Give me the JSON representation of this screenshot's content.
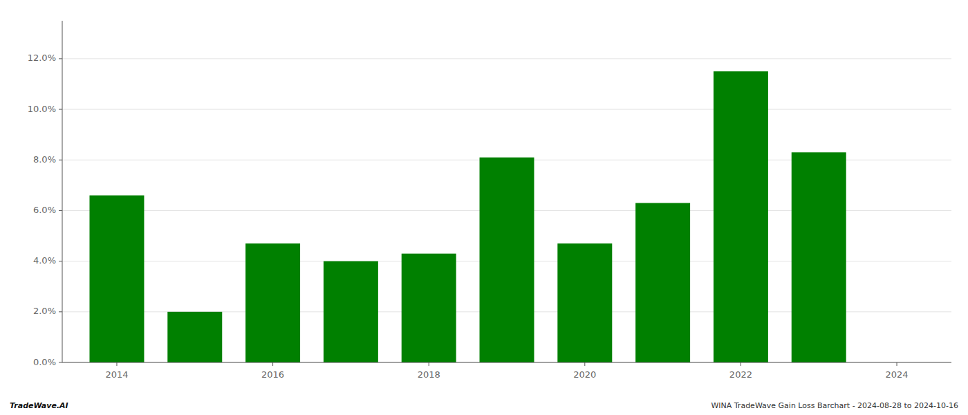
{
  "chart_data": {
    "type": "bar",
    "x": [
      2014,
      2015,
      2016,
      2017,
      2018,
      2019,
      2020,
      2021,
      2022,
      2023
    ],
    "values": [
      0.066,
      0.02,
      0.047,
      0.04,
      0.043,
      0.081,
      0.047,
      0.063,
      0.115,
      0.083
    ],
    "color": "#008000",
    "xlim": [
      2013.3,
      2024.7
    ],
    "xticks": [
      2014,
      2016,
      2018,
      2020,
      2022,
      2024
    ],
    "ylim": [
      0,
      0.135
    ],
    "yticks": [
      {
        "value": 0.0,
        "label": "0.0%"
      },
      {
        "value": 0.02,
        "label": "2.0%"
      },
      {
        "value": 0.04,
        "label": "4.0%"
      },
      {
        "value": 0.06,
        "label": "6.0%"
      },
      {
        "value": 0.08,
        "label": "8.0%"
      },
      {
        "value": 0.1,
        "label": "10.0%"
      },
      {
        "value": 0.12,
        "label": "12.0%"
      }
    ],
    "grid": true,
    "annotations": [
      "TradeWave.AI",
      "WINA TradeWave Gain Loss Barchart - 2024-08-28 to 2024-10-16"
    ]
  }
}
